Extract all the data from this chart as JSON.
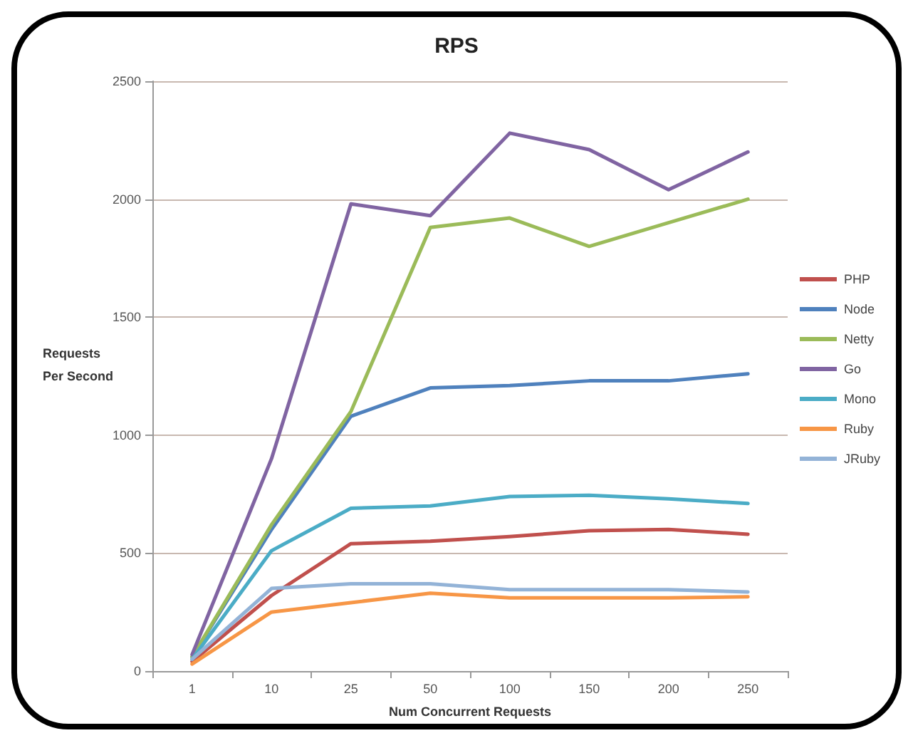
{
  "chart_data": {
    "type": "line",
    "title": "RPS",
    "xlabel": "Num Concurrent Requests",
    "ylabel": "Requests Per Second",
    "categories": [
      "1",
      "10",
      "25",
      "50",
      "100",
      "150",
      "200",
      "250"
    ],
    "series": [
      {
        "name": "PHP",
        "color": "#c0504d",
        "values": [
          40,
          320,
          540,
          550,
          570,
          595,
          600,
          580
        ]
      },
      {
        "name": "Node",
        "color": "#4f81bd",
        "values": [
          60,
          600,
          1080,
          1200,
          1210,
          1230,
          1230,
          1260
        ]
      },
      {
        "name": "Netty",
        "color": "#9bbb59",
        "values": [
          60,
          620,
          1100,
          1880,
          1920,
          1800,
          1900,
          2000
        ]
      },
      {
        "name": "Go",
        "color": "#8064a2",
        "values": [
          70,
          900,
          1980,
          1930,
          2280,
          2210,
          2040,
          2200
        ]
      },
      {
        "name": "Mono",
        "color": "#4bacc6",
        "values": [
          50,
          510,
          690,
          700,
          740,
          745,
          730,
          710
        ]
      },
      {
        "name": "Ruby",
        "color": "#f79646",
        "values": [
          30,
          250,
          290,
          330,
          310,
          310,
          310,
          315
        ]
      },
      {
        "name": "JRuby",
        "color": "#93b3d7",
        "values": [
          50,
          350,
          370,
          370,
          345,
          345,
          345,
          335
        ]
      }
    ],
    "ylim": [
      0,
      2500
    ],
    "yticks": [
      0,
      500,
      1000,
      1500,
      2000,
      2500
    ],
    "grid": "y",
    "legend": "right",
    "marker": "none",
    "line_style": "solid"
  }
}
